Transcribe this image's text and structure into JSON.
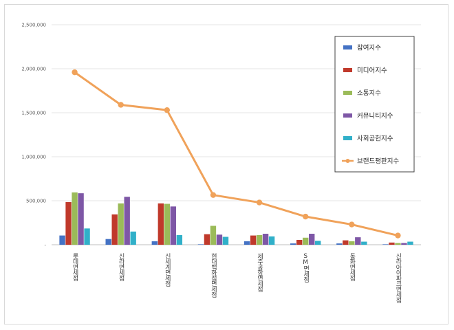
{
  "chart_data": {
    "type": "bar",
    "categories": [
      "롯데면세점",
      "신라면세점",
      "신세계면세점",
      "현대백화점면세점",
      "제주공항면세점",
      "SM면세점",
      "동화면세점",
      "신라아이파크면세점"
    ],
    "ylim": [
      0,
      2500000
    ],
    "yticks": [
      0,
      500000,
      1000000,
      1500000,
      2000000,
      2500000
    ],
    "ytick_labels": [
      "-",
      "500,000",
      "1,000,000",
      "1,500,000",
      "2,000,000",
      "2,500,000"
    ],
    "grid": true,
    "legend_position": "top-right",
    "series": [
      {
        "name": "참여지수",
        "kind": "bar",
        "color": "#4472c4",
        "values": [
          105000,
          65000,
          40000,
          5000,
          40000,
          15000,
          15000,
          5000
        ]
      },
      {
        "name": "미디어지수",
        "kind": "bar",
        "color": "#c0392b",
        "values": [
          485000,
          345000,
          470000,
          120000,
          105000,
          55000,
          50000,
          25000
        ]
      },
      {
        "name": "소통지수",
        "kind": "bar",
        "color": "#9bbb59",
        "values": [
          595000,
          470000,
          465000,
          215000,
          110000,
          80000,
          40000,
          20000
        ]
      },
      {
        "name": "커뮤니티지수",
        "kind": "bar",
        "color": "#7e57a6",
        "values": [
          585000,
          545000,
          435000,
          115000,
          125000,
          125000,
          85000,
          20000
        ]
      },
      {
        "name": "사회공헌지수",
        "kind": "bar",
        "color": "#31b0c9",
        "values": [
          185000,
          150000,
          110000,
          90000,
          95000,
          45000,
          35000,
          35000
        ]
      },
      {
        "name": "브랜드평판지수",
        "kind": "line",
        "color": "#f0a25a",
        "values": [
          1960000,
          1590000,
          1530000,
          565000,
          480000,
          320000,
          230000,
          105000
        ]
      }
    ]
  }
}
